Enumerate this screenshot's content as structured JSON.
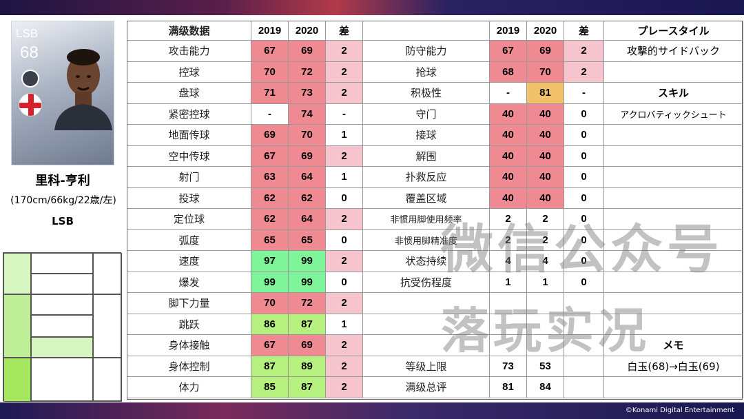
{
  "player": {
    "position": "LSB",
    "rating": "68",
    "name": "里科-亨利",
    "info": "(170cm/66kg/22歳/左)",
    "role": "LSB"
  },
  "headers": {
    "left_title": "满级数据",
    "year1": "2019",
    "year2": "2020",
    "diff": "差",
    "playstyle": "プレースタイル",
    "skill": "スキル",
    "memo": "メモ"
  },
  "left_stats": [
    {
      "label": "攻击能力",
      "v2019": "67",
      "v2020": "69",
      "diff": "2"
    },
    {
      "label": "控球",
      "v2019": "70",
      "v2020": "72",
      "diff": "2"
    },
    {
      "label": "盘球",
      "v2019": "71",
      "v2020": "73",
      "diff": "2"
    },
    {
      "label": "紧密控球",
      "v2019": "-",
      "v2020": "74",
      "diff": "-"
    },
    {
      "label": "地面传球",
      "v2019": "69",
      "v2020": "70",
      "diff": "1"
    },
    {
      "label": "空中传球",
      "v2019": "67",
      "v2020": "69",
      "diff": "2"
    },
    {
      "label": "射门",
      "v2019": "63",
      "v2020": "64",
      "diff": "1"
    },
    {
      "label": "投球",
      "v2019": "62",
      "v2020": "62",
      "diff": "0"
    },
    {
      "label": "定位球",
      "v2019": "62",
      "v2020": "64",
      "diff": "2"
    },
    {
      "label": "弧度",
      "v2019": "65",
      "v2020": "65",
      "diff": "0"
    },
    {
      "label": "速度",
      "v2019": "97",
      "v2020": "99",
      "diff": "2"
    },
    {
      "label": "爆发",
      "v2019": "99",
      "v2020": "99",
      "diff": "0"
    },
    {
      "label": "脚下力量",
      "v2019": "70",
      "v2020": "72",
      "diff": "2"
    },
    {
      "label": "跳跃",
      "v2019": "86",
      "v2020": "87",
      "diff": "1"
    },
    {
      "label": "身体接触",
      "v2019": "67",
      "v2020": "69",
      "diff": "2"
    },
    {
      "label": "身体控制",
      "v2019": "87",
      "v2020": "89",
      "diff": "2"
    },
    {
      "label": "体力",
      "v2019": "85",
      "v2020": "87",
      "diff": "2"
    }
  ],
  "right_stats": [
    {
      "label": "防守能力",
      "v2019": "67",
      "v2020": "69",
      "diff": "2"
    },
    {
      "label": "抢球",
      "v2019": "68",
      "v2020": "70",
      "diff": "2"
    },
    {
      "label": "积极性",
      "v2019": "-",
      "v2020": "81",
      "diff": "-"
    },
    {
      "label": "守门",
      "v2019": "40",
      "v2020": "40",
      "diff": "0"
    },
    {
      "label": "接球",
      "v2019": "40",
      "v2020": "40",
      "diff": "0"
    },
    {
      "label": "解围",
      "v2019": "40",
      "v2020": "40",
      "diff": "0"
    },
    {
      "label": "扑救反应",
      "v2019": "40",
      "v2020": "40",
      "diff": "0"
    },
    {
      "label": "覆盖区域",
      "v2019": "40",
      "v2020": "40",
      "diff": "0"
    },
    {
      "label": "非惯用脚使用频率",
      "v2019": "2",
      "v2020": "2",
      "diff": "0"
    },
    {
      "label": "非惯用脚精准度",
      "v2019": "2",
      "v2020": "2",
      "diff": "0"
    },
    {
      "label": "状态持续",
      "v2019": "4",
      "v2020": "4",
      "diff": "0"
    },
    {
      "label": "抗受伤程度",
      "v2019": "1",
      "v2020": "1",
      "diff": "0"
    },
    {
      "label": "",
      "v2019": "",
      "v2020": "",
      "diff": ""
    },
    {
      "label": "",
      "v2019": "",
      "v2020": "",
      "diff": ""
    },
    {
      "label": "",
      "v2019": "",
      "v2020": "",
      "diff": ""
    },
    {
      "label": "等级上限",
      "v2019": "73",
      "v2020": "53",
      "diff": ""
    },
    {
      "label": "满级总评",
      "v2019": "81",
      "v2020": "84",
      "diff": ""
    }
  ],
  "side": {
    "playstyle_value": "攻撃的サイドバック",
    "skill_value": "アクロバティックシュート",
    "memo_value": "白玉(68)→白玉(69)"
  },
  "watermark": {
    "line1": "微信公众号",
    "line2": "落玩实况"
  },
  "copyright": "©Konami Digital Entertainment",
  "colors": {
    "red": "#f08a92",
    "pink": "#f6c4cc",
    "green_bright": "#7ef59a",
    "green_light": "#b6f07e",
    "orange": "#f2c26a",
    "pitch_green": "#d8f7c0",
    "pitch_green_mid": "#c0ef9a",
    "pitch_green_dark": "#a5e860"
  }
}
